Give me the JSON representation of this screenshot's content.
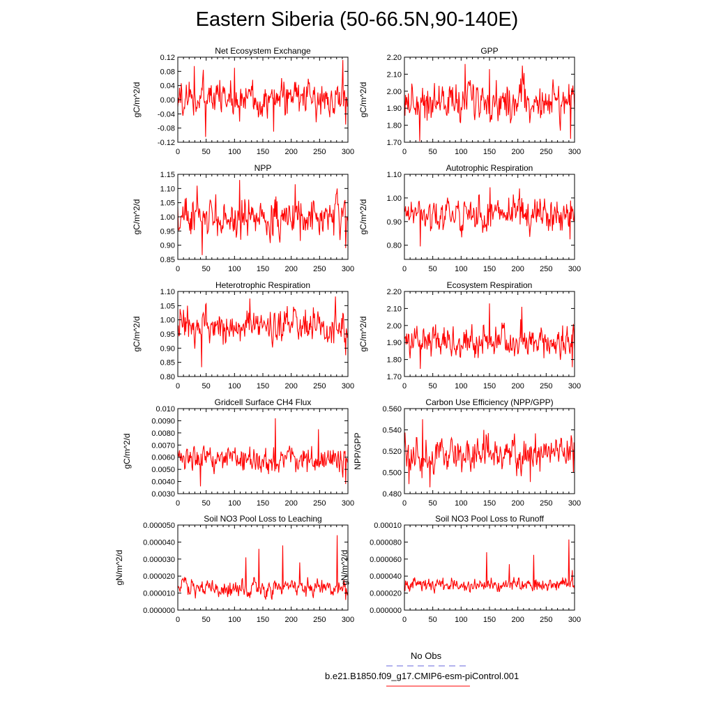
{
  "page_title": "Eastern Siberia (50-66.5N,90-140E)",
  "legend": {
    "obs_label": "No Obs",
    "obs_color": "#6666dd",
    "model_label": "b.e21.B1850.f09_g17.CMIP6-esm-piControl.001",
    "model_color": "#ff0000"
  },
  "line_color": "#ff0000",
  "chart_data": [
    {
      "type": "line",
      "title": "Net Ecosystem Exchange",
      "xlabel": "",
      "ylabel": "gC/m^2/d",
      "xlim": [
        0,
        300
      ],
      "xticks": [
        0,
        50,
        100,
        150,
        200,
        250,
        300
      ],
      "ylim": [
        -0.12,
        0.12
      ],
      "yticks": [
        "-0.12",
        "-0.08",
        "-0.04",
        "0.00",
        "0.04",
        "0.08",
        "0.12"
      ],
      "series": [
        {
          "name": "b.e21.B1850.f09_g17.CMIP6-esm-piControl.001",
          "mean": 0.005,
          "amp": 0.036,
          "spikes": [
            [
              29,
              0.095
            ],
            [
              49,
              -0.105
            ],
            [
              100,
              0.09
            ],
            [
              169,
              -0.09
            ],
            [
              291,
              0.112
            ],
            [
              296,
              -0.07
            ]
          ]
        }
      ]
    },
    {
      "type": "line",
      "title": "GPP",
      "xlabel": "",
      "ylabel": "gC/m^2/d",
      "xlim": [
        0,
        300
      ],
      "xticks": [
        0,
        50,
        100,
        150,
        200,
        250,
        300
      ],
      "ylim": [
        1.7,
        2.2
      ],
      "yticks": [
        "1.70",
        "1.80",
        "1.90",
        "2.00",
        "2.10",
        "2.20"
      ],
      "series": [
        {
          "name": "b.e21.B1850.f09_g17.CMIP6-esm-piControl.001",
          "mean": 1.94,
          "amp": 0.075,
          "spikes": [
            [
              27,
              1.705
            ],
            [
              107,
              2.16
            ],
            [
              150,
              2.13
            ],
            [
              208,
              2.15
            ],
            [
              293,
              1.72
            ]
          ]
        }
      ]
    },
    {
      "type": "line",
      "title": "NPP",
      "xlabel": "",
      "ylabel": "gC/m^2/d",
      "xlim": [
        0,
        300
      ],
      "xticks": [
        0,
        50,
        100,
        150,
        200,
        250,
        300
      ],
      "ylim": [
        0.85,
        1.15
      ],
      "yticks": [
        "0.85",
        "0.90",
        "0.95",
        "1.00",
        "1.05",
        "1.10",
        "1.15"
      ],
      "series": [
        {
          "name": "b.e21.B1850.f09_g17.CMIP6-esm-piControl.001",
          "mean": 0.995,
          "amp": 0.045,
          "spikes": [
            [
              34,
              1.11
            ],
            [
              43,
              0.865
            ],
            [
              109,
              1.13
            ],
            [
              207,
              1.115
            ],
            [
              296,
              0.89
            ]
          ]
        }
      ]
    },
    {
      "type": "line",
      "title": "Autotrophic Respiration",
      "xlabel": "",
      "ylabel": "gC/m^2/d",
      "xlim": [
        0,
        300
      ],
      "xticks": [
        0,
        50,
        100,
        150,
        200,
        250,
        300
      ],
      "ylim": [
        0.74,
        1.1
      ],
      "yticks": [
        "0.80",
        "0.90",
        "1.00",
        "1.10"
      ],
      "series": [
        {
          "name": "b.e21.B1850.f09_g17.CMIP6-esm-piControl.001",
          "mean": 0.93,
          "amp": 0.045,
          "spikes": [
            [
              28,
              0.795
            ],
            [
              151,
              1.045
            ],
            [
              203,
              1.04
            ],
            [
              292,
              0.825
            ]
          ]
        }
      ]
    },
    {
      "type": "line",
      "title": "Heterotrophic Respiration",
      "xlabel": "",
      "ylabel": "gC/m^2/d",
      "xlim": [
        0,
        300
      ],
      "xticks": [
        0,
        50,
        100,
        150,
        200,
        250,
        300
      ],
      "ylim": [
        0.8,
        1.1
      ],
      "yticks": [
        "0.80",
        "0.85",
        "0.90",
        "0.95",
        "1.00",
        "1.05",
        "1.10"
      ],
      "series": [
        {
          "name": "b.e21.B1850.f09_g17.CMIP6-esm-piControl.001",
          "mean": 0.975,
          "amp": 0.04,
          "spikes": [
            [
              42,
              0.833
            ],
            [
              127,
              1.075
            ],
            [
              278,
              1.082
            ],
            [
              296,
              0.875
            ]
          ]
        }
      ]
    },
    {
      "type": "line",
      "title": "Ecosystem Respiration",
      "xlabel": "",
      "ylabel": "gC/m^2/d",
      "xlim": [
        0,
        300
      ],
      "xticks": [
        0,
        50,
        100,
        150,
        200,
        250,
        300
      ],
      "ylim": [
        1.7,
        2.2
      ],
      "yticks": [
        "1.70",
        "1.80",
        "1.90",
        "2.00",
        "2.10",
        "2.20"
      ],
      "series": [
        {
          "name": "b.e21.B1850.f09_g17.CMIP6-esm-piControl.001",
          "mean": 1.9,
          "amp": 0.065,
          "spikes": [
            [
              28,
              1.745
            ],
            [
              150,
              2.13
            ],
            [
              207,
              2.11
            ],
            [
              296,
              1.755
            ]
          ]
        }
      ]
    },
    {
      "type": "line",
      "title": "Gridcell Surface CH4 Flux",
      "xlabel": "",
      "ylabel": "gC/m^2/d",
      "xlim": [
        0,
        300
      ],
      "xticks": [
        0,
        50,
        100,
        150,
        200,
        250,
        300
      ],
      "ylim": [
        0.003,
        0.01
      ],
      "yticks": [
        "0.0030",
        "0.0040",
        "0.0050",
        "0.0060",
        "0.0070",
        "0.0080",
        "0.0090",
        "0.010"
      ],
      "series": [
        {
          "name": "b.e21.B1850.f09_g17.CMIP6-esm-piControl.001",
          "mean": 0.0057,
          "amp": 0.0007,
          "spikes": [
            [
              40,
              0.0036
            ],
            [
              172,
              0.0092
            ],
            [
              248,
              0.0083
            ],
            [
              296,
              0.0038
            ]
          ]
        }
      ]
    },
    {
      "type": "line",
      "title": "Carbon Use Efficiency (NPP/GPP)",
      "xlabel": "",
      "ylabel": "NPP/GPP",
      "xlim": [
        0,
        300
      ],
      "xticks": [
        0,
        50,
        100,
        150,
        200,
        250,
        300
      ],
      "ylim": [
        0.48,
        0.56
      ],
      "yticks": [
        "0.480",
        "0.500",
        "0.520",
        "0.540",
        "0.560"
      ],
      "series": [
        {
          "name": "b.e21.B1850.f09_g17.CMIP6-esm-piControl.001",
          "mean": 0.517,
          "amp": 0.011,
          "spikes": [
            [
              8,
              0.489
            ],
            [
              32,
              0.55
            ],
            [
              45,
              0.486
            ],
            [
              140,
              0.54
            ],
            [
              222,
              0.491
            ],
            [
              298,
              0.5
            ]
          ]
        }
      ]
    },
    {
      "type": "line",
      "title": "Soil NO3 Pool Loss to Leaching",
      "xlabel": "",
      "ylabel": "gN/m^2/d",
      "xlim": [
        0,
        300
      ],
      "xticks": [
        0,
        50,
        100,
        150,
        200,
        250,
        300
      ],
      "ylim": [
        0,
        5e-05
      ],
      "yticks": [
        "0.000000",
        "0.000010",
        "0.000020",
        "0.000030",
        "0.000040",
        "0.000050"
      ],
      "series": [
        {
          "name": "b.e21.B1850.f09_g17.CMIP6-esm-piControl.001",
          "mean": 1.3e-05,
          "amp": 3.5e-06,
          "spikes": [
            [
              120,
              3.1e-05
            ],
            [
              143,
              3.6e-05
            ],
            [
              185,
              3.8e-05
            ],
            [
              215,
              2.8e-05
            ],
            [
              281,
              4.4e-05
            ],
            [
              296,
              6e-06
            ]
          ]
        }
      ]
    },
    {
      "type": "line",
      "title": "Soil NO3 Pool Loss to Runoff",
      "xlabel": "",
      "ylabel": "gN/m^2/d",
      "xlim": [
        0,
        300
      ],
      "xticks": [
        0,
        50,
        100,
        150,
        200,
        250,
        300
      ],
      "ylim": [
        0,
        0.0001
      ],
      "yticks": [
        "0.000000",
        "0.000020",
        "0.000040",
        "0.000060",
        "0.000080",
        "0.00010"
      ],
      "series": [
        {
          "name": "b.e21.B1850.f09_g17.CMIP6-esm-piControl.001",
          "mean": 3e-05,
          "amp": 5.5e-06,
          "spikes": [
            [
              145,
              6.8e-05
            ],
            [
              185,
              5.4e-05
            ],
            [
              228,
              6.5e-05
            ],
            [
              290,
              8.3e-05
            ],
            [
              296,
              4.7e-05
            ]
          ]
        }
      ]
    }
  ]
}
